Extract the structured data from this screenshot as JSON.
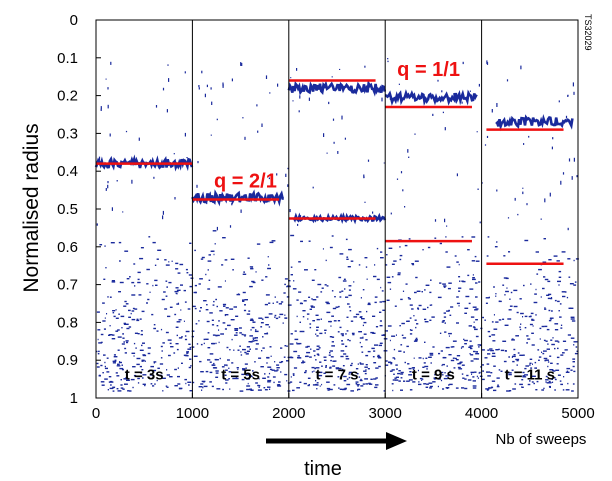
{
  "chart_data": {
    "type": "scatter",
    "ylabel": "Normalised radius",
    "xlabel": "Nb of sweeps",
    "time_label": "time",
    "figure_code": "TS32029",
    "xlim": [
      0,
      5000
    ],
    "ylim": [
      0,
      1
    ],
    "y_inverted": true,
    "x_ticks": [
      "0",
      "1000",
      "2000",
      "3000",
      "4000",
      "5000"
    ],
    "y_ticks": [
      "0",
      "0.1",
      "0.2",
      "0.3",
      "0.4",
      "0.5",
      "0.6",
      "0.7",
      "0.8",
      "0.9",
      "1"
    ],
    "x_tick_values": [
      0,
      1000,
      2000,
      3000,
      4000,
      5000
    ],
    "y_tick_values": [
      0,
      0.1,
      0.2,
      0.3,
      0.4,
      0.5,
      0.6,
      0.7,
      0.8,
      0.9,
      1
    ],
    "panel_boundaries": [
      1000,
      2000,
      3000,
      4000
    ],
    "panel_labels": [
      {
        "text": "t = 3s",
        "x": 500,
        "y": 0.935
      },
      {
        "text": "t = 5s",
        "x": 1500,
        "y": 0.935
      },
      {
        "text": "t = 7 s",
        "x": 2500,
        "y": 0.935
      },
      {
        "text": "t = 9 s",
        "x": 3500,
        "y": 0.935
      },
      {
        "text": "t = 11 s",
        "x": 4500,
        "y": 0.935
      }
    ],
    "annotations": [
      {
        "text": "q = 2/1",
        "x": 1550,
        "y": 0.425
      },
      {
        "text": "q = 1/1",
        "x": 3450,
        "y": 0.13
      }
    ],
    "reference_lines": [
      {
        "x0": 0,
        "x1": 1000,
        "y": 0.38
      },
      {
        "x0": 1000,
        "x1": 1900,
        "y": 0.475
      },
      {
        "x0": 2000,
        "x1": 2900,
        "y": 0.16
      },
      {
        "x0": 2000,
        "x1": 2900,
        "y": 0.525
      },
      {
        "x0": 3000,
        "x1": 3900,
        "y": 0.23
      },
      {
        "x0": 3000,
        "x1": 3900,
        "y": 0.585
      },
      {
        "x0": 4050,
        "x1": 4850,
        "y": 0.29
      },
      {
        "x0": 4050,
        "x1": 4850,
        "y": 0.645
      }
    ],
    "reflectometry_bands": [
      {
        "x0": 0,
        "x1": 1000,
        "y": 0.38,
        "spread": 0.012
      },
      {
        "x0": 1000,
        "x1": 1950,
        "y": 0.47,
        "spread": 0.012
      },
      {
        "x0": 2000,
        "x1": 3000,
        "y": 0.18,
        "spread": 0.012
      },
      {
        "x0": 2050,
        "x1": 3000,
        "y": 0.525,
        "spread": 0.006
      },
      {
        "x0": 3000,
        "x1": 3950,
        "y": 0.205,
        "spread": 0.012
      },
      {
        "x0": 4150,
        "x1": 4950,
        "y": 0.27,
        "spread": 0.012
      }
    ],
    "colors": {
      "data": "#1a2a9c",
      "reference": "#ee1111",
      "annotation": "#ee1111",
      "axis": "#000000"
    },
    "grid": false,
    "legend": "none"
  }
}
